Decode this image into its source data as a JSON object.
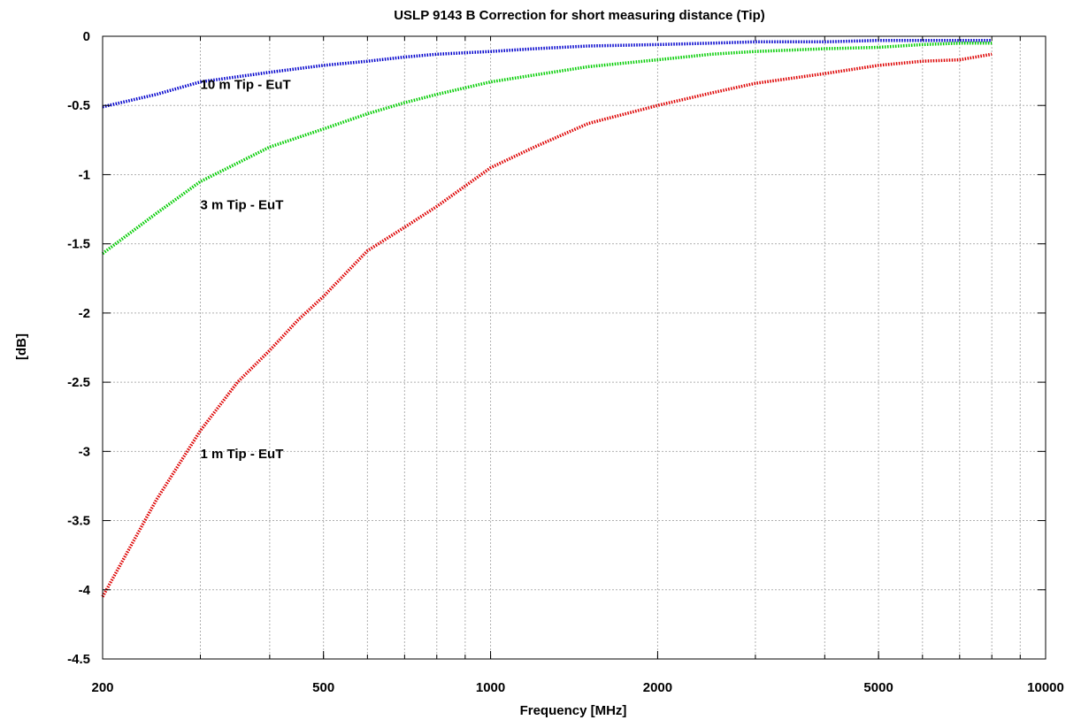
{
  "chart_data": {
    "type": "line",
    "title": "USLP 9143 B Correction for short measuring distance (Tip)",
    "xlabel": "Frequency [MHz]",
    "ylabel": "[dB]",
    "x_scale": "log",
    "xlim": [
      200,
      10000
    ],
    "ylim": [
      -4.5,
      0
    ],
    "x_ticks": [
      {
        "value": 200,
        "label": "200"
      },
      {
        "value": 500,
        "label": "500"
      },
      {
        "value": 1000,
        "label": "1000"
      },
      {
        "value": 2000,
        "label": "2000"
      },
      {
        "value": 5000,
        "label": "5000"
      },
      {
        "value": 10000,
        "label": "10000"
      }
    ],
    "y_ticks": [
      {
        "value": 0,
        "label": "0"
      },
      {
        "value": -0.5,
        "label": "-0.5"
      },
      {
        "value": -1,
        "label": "-1"
      },
      {
        "value": -1.5,
        "label": "-1.5"
      },
      {
        "value": -2,
        "label": "-2"
      },
      {
        "value": -2.5,
        "label": "-2.5"
      },
      {
        "value": -3,
        "label": "-3"
      },
      {
        "value": -3.5,
        "label": "-3.5"
      },
      {
        "value": -4,
        "label": "-4"
      },
      {
        "value": -4.5,
        "label": "-4.5"
      }
    ],
    "grid": true,
    "legend": "none",
    "series": [
      {
        "label": "10 m Tip - EuT",
        "label_at": {
          "x": 300,
          "y": -0.38
        },
        "color": "#0000cc",
        "x": [
          200,
          250,
          300,
          400,
          500,
          600,
          700,
          800,
          1000,
          1200,
          1500,
          2000,
          2500,
          3000,
          4000,
          5000,
          6000,
          7000,
          8000
        ],
        "y": [
          -0.51,
          -0.42,
          -0.33,
          -0.26,
          -0.21,
          -0.18,
          -0.15,
          -0.13,
          -0.11,
          -0.09,
          -0.07,
          -0.06,
          -0.05,
          -0.04,
          -0.04,
          -0.03,
          -0.03,
          -0.03,
          -0.03
        ]
      },
      {
        "label": "3 m Tip - EuT",
        "label_at": {
          "x": 300,
          "y": -1.25
        },
        "color": "#00cc00",
        "x": [
          200,
          250,
          300,
          400,
          500,
          600,
          700,
          800,
          1000,
          1200,
          1500,
          2000,
          2500,
          3000,
          4000,
          5000,
          6000,
          7000,
          8000
        ],
        "y": [
          -1.57,
          -1.28,
          -1.05,
          -0.8,
          -0.67,
          -0.56,
          -0.48,
          -0.42,
          -0.33,
          -0.28,
          -0.22,
          -0.17,
          -0.13,
          -0.11,
          -0.09,
          -0.08,
          -0.06,
          -0.05,
          -0.05
        ]
      },
      {
        "label": "1 m Tip - EuT",
        "label_at": {
          "x": 300,
          "y": -3.05
        },
        "color": "#dd0000",
        "x": [
          200,
          250,
          300,
          350,
          400,
          450,
          500,
          600,
          700,
          800,
          1000,
          1200,
          1500,
          2000,
          2500,
          3000,
          4000,
          5000,
          6000,
          7000,
          8000
        ],
        "y": [
          -4.05,
          -3.35,
          -2.85,
          -2.5,
          -2.27,
          -2.05,
          -1.88,
          -1.55,
          -1.38,
          -1.23,
          -0.95,
          -0.8,
          -0.63,
          -0.5,
          -0.41,
          -0.34,
          -0.27,
          -0.21,
          -0.18,
          -0.17,
          -0.13
        ]
      }
    ]
  }
}
